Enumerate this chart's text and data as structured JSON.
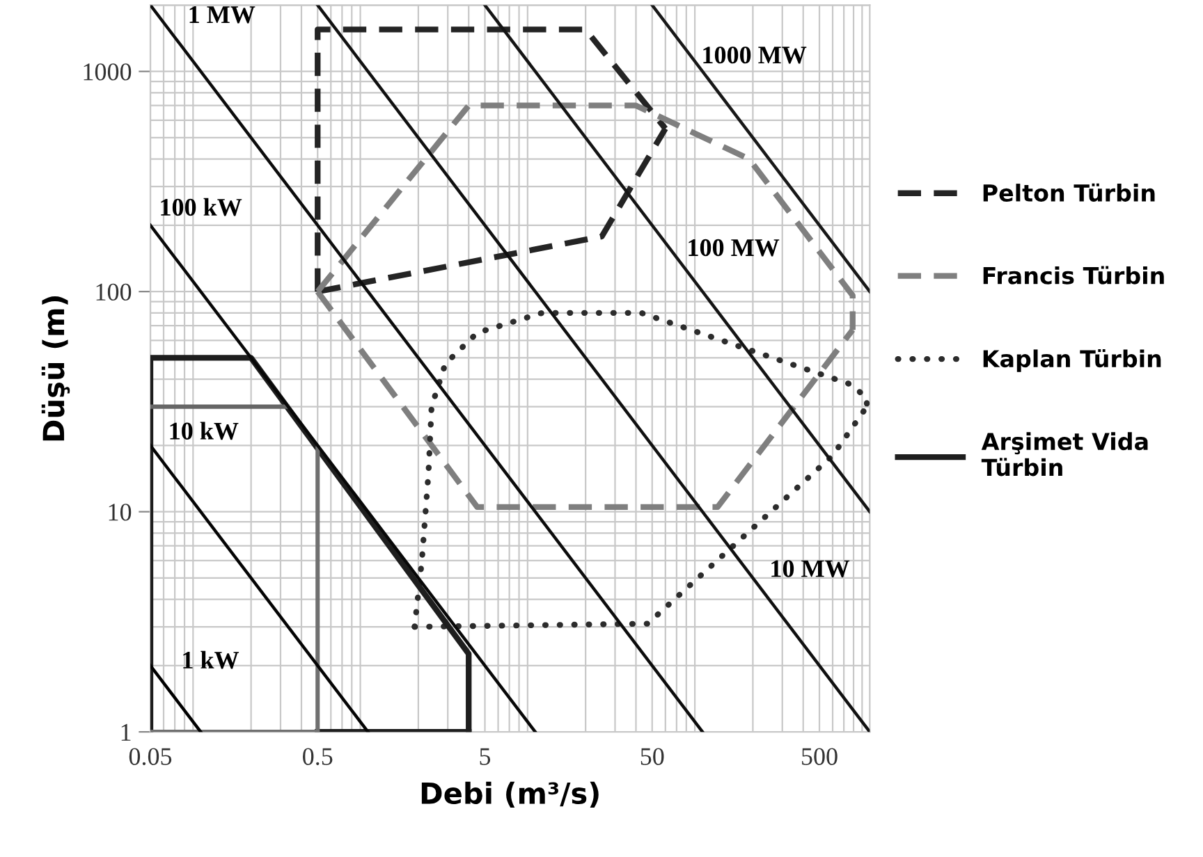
{
  "chart_data": {
    "type": "line",
    "xlabel": "Debi (m³/s)",
    "ylabel": "Düşü (m)",
    "log": "xy",
    "xlim": [
      0.05,
      1000
    ],
    "ylim": [
      1,
      2000
    ],
    "xticks": [
      0.05,
      0.5,
      5,
      50,
      500
    ],
    "yticks": [
      1,
      10,
      100,
      1000
    ],
    "grid": true,
    "legend": "right",
    "series": [
      {
        "name": "Pelton Türbin",
        "color": "#242424",
        "line_style": "dashed",
        "x": [
          0.5,
          0.5,
          20,
          60
        ],
        "values": [
          100,
          1550,
          1550,
          550
        ]
      },
      {
        "color": "#242424",
        "line_style": "dashed",
        "x": [
          0.5,
          25,
          60
        ],
        "values": [
          100,
          178,
          550
        ]
      },
      {
        "name": "Francis Türbin",
        "color": "#7f7f7f",
        "line_style": "dashed",
        "x": [
          0.5,
          4,
          40,
          190,
          790,
          790
        ],
        "values": [
          100,
          700,
          700,
          400,
          96,
          67
        ]
      },
      {
        "color": "#7f7f7f",
        "line_style": "dashed",
        "x": [
          0.5,
          4.5,
          123,
          790
        ],
        "values": [
          100,
          10.5,
          10.5,
          67
        ]
      },
      {
        "name": "Kaplan Türbin",
        "color": "#2c2c2c",
        "line_style": "dotted",
        "x": [
          1.9,
          2.1,
          2.3,
          2.4,
          2.9,
          4.5,
          11,
          43,
          170,
          760,
          960,
          960
        ],
        "values": [
          3,
          6,
          15,
          30,
          47,
          65,
          80,
          80,
          56,
          38,
          33,
          30
        ]
      },
      {
        "color": "#2c2c2c",
        "line_style": "dotted",
        "x": [
          1.9,
          47,
          600,
          960
        ],
        "values": [
          3,
          3.1,
          18,
          30
        ]
      },
      {
        "name": "Arşimet Vida\nTürbin",
        "color": "#1e1e1e",
        "line_style": "solid",
        "x": [
          0.05,
          0.05,
          0.2,
          4,
          4
        ],
        "values": [
          1,
          50,
          50,
          2.26,
          1
        ]
      },
      {
        "color": "#1e1e1e",
        "line_style": "solid",
        "x": [
          0.5,
          4
        ],
        "values": [
          1,
          1
        ]
      },
      {
        "color": "#666666",
        "line_style": "solid",
        "x": [
          0.05,
          0.33
        ],
        "values": [
          30,
          30
        ]
      },
      {
        "color": "#707070",
        "line_style": "solid",
        "x": [
          0.05,
          0.5,
          0.5
        ],
        "values": [
          1,
          1,
          19.4
        ]
      },
      {
        "color": "#000000",
        "line_style": "solid",
        "x": [
          0.05,
          0.1
        ],
        "values": [
          2,
          1
        ]
      },
      {
        "color": "#040404",
        "line_style": "solid",
        "x": [
          0.05,
          1
        ],
        "values": [
          20,
          1
        ]
      },
      {
        "color": "#080808",
        "line_style": "solid",
        "x": [
          0.05,
          10
        ],
        "values": [
          200,
          1
        ]
      },
      {
        "color": "#0c0c0c",
        "line_style": "solid",
        "x": [
          0.05,
          100
        ],
        "values": [
          2000,
          1
        ]
      },
      {
        "color": "#101010",
        "line_style": "solid",
        "x": [
          0.5,
          1000
        ],
        "values": [
          2000,
          1
        ]
      },
      {
        "color": "#141414",
        "line_style": "solid",
        "x": [
          5,
          1000
        ],
        "values": [
          2000,
          10
        ]
      },
      {
        "color": "#181818",
        "line_style": "solid",
        "x": [
          50,
          1000
        ],
        "values": [
          2000,
          100
        ]
      }
    ],
    "annotations": [
      {
        "text": "1 kW",
        "x": 0.061,
        "y": 1.64
      },
      {
        "text": "10 kW",
        "x": 0.0556,
        "y": 18
      },
      {
        "text": "100 kW",
        "x": 0.0534,
        "y": 187
      },
      {
        "text": "1 MW",
        "x": 0.0713,
        "y": 1402
      },
      {
        "text": "10 MW",
        "x": 234,
        "y": 4.27
      },
      {
        "text": "100 MW",
        "x": 81.6,
        "y": 122.6
      },
      {
        "text": "1000 MW",
        "x": 108.8,
        "y": 919
      }
    ]
  }
}
